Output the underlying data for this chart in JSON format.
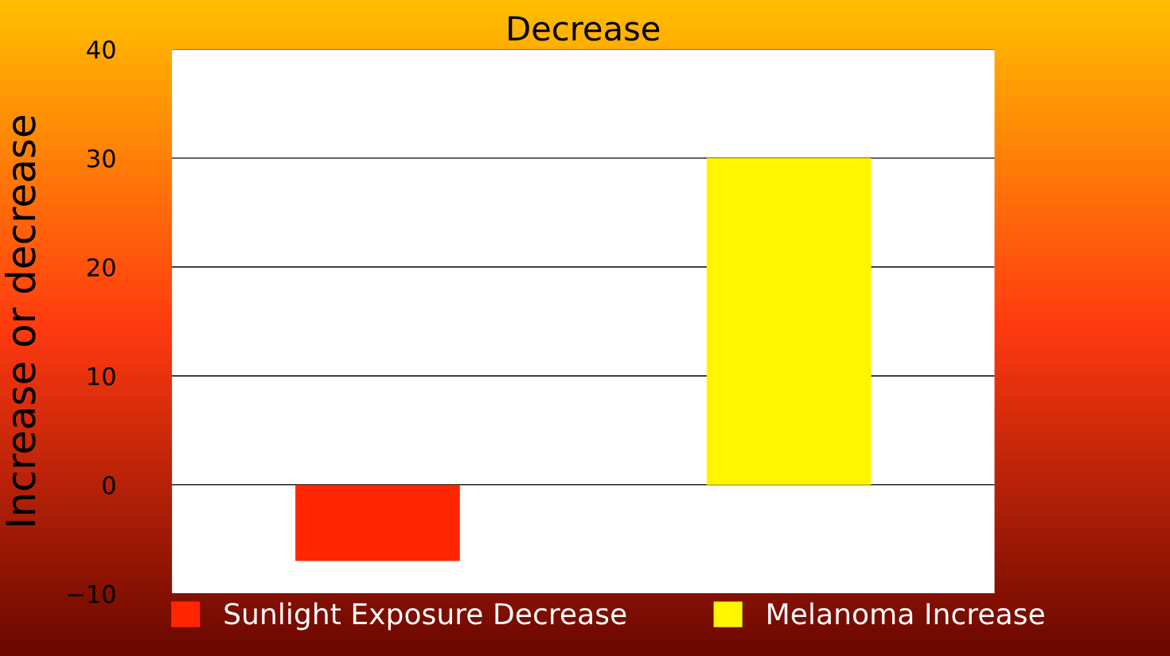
{
  "chart_data": {
    "type": "bar",
    "title": "Decrease",
    "ylabel": "Increase or decrease",
    "categories": [
      null,
      null
    ],
    "series": [
      {
        "name": "Sunlight Exposure Decrease",
        "color": "#ff2600",
        "values": [
          -7,
          null
        ]
      },
      {
        "name": "Melanoma Increase",
        "color": "#fff500",
        "values": [
          null,
          30
        ]
      }
    ],
    "ylim": [
      -10,
      40
    ],
    "yticks": [
      {
        "value": -10,
        "label": "−10"
      },
      0,
      10,
      20,
      30,
      40
    ],
    "grid": "y",
    "legend": "bottom"
  }
}
